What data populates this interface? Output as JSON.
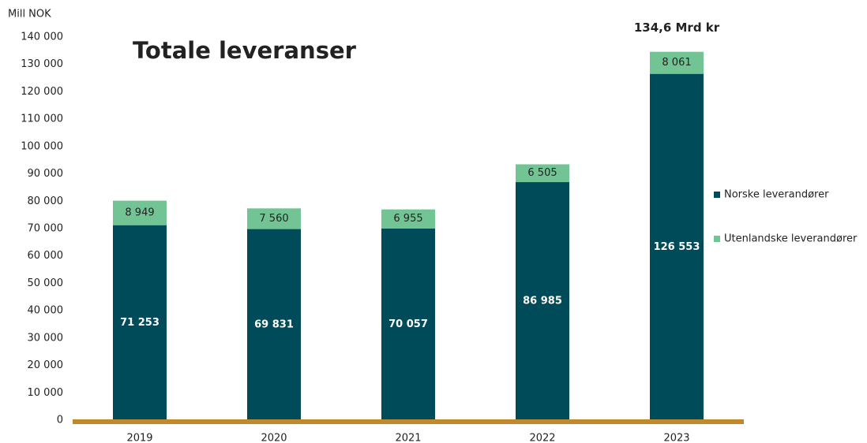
{
  "chart_data": {
    "type": "stacked_bar",
    "title": "Totale leveranser",
    "y_label": "Mill NOK",
    "annotation": "134,6 Mrd kr",
    "categories": [
      "2019",
      "2020",
      "2021",
      "2022",
      "2023"
    ],
    "series": [
      {
        "name": "Norske leverandører",
        "color": "#004b5a",
        "values": [
          71253,
          69831,
          70057,
          86985,
          126553
        ],
        "value_labels": [
          "71 253",
          "69 831",
          "70 057",
          "86 985",
          "126 553"
        ]
      },
      {
        "name": "Utenlandske leverandører",
        "color": "#72c495",
        "values": [
          8949,
          7560,
          6955,
          6505,
          8061
        ],
        "value_labels": [
          "8 949",
          "7 560",
          "6 955",
          "6 505",
          "8 061"
        ]
      }
    ],
    "ylim": [
      0,
      140000
    ],
    "yticks": [
      0,
      {
        "value": 10000,
        "label": "10 000"
      },
      {
        "value": 20000,
        "label": "20 000"
      },
      {
        "value": 30000,
        "label": "30 000"
      },
      {
        "value": 40000,
        "label": "40 000"
      },
      {
        "value": 50000,
        "label": "50 000"
      },
      {
        "value": 60000,
        "label": "60 000"
      },
      {
        "value": 70000,
        "label": "70 000"
      },
      {
        "value": 80000,
        "label": "80 000"
      },
      {
        "value": 90000,
        "label": "90 000"
      },
      {
        "value": 100000,
        "label": "100 000"
      },
      {
        "value": 110000,
        "label": "110 000"
      },
      {
        "value": 120000,
        "label": "120 000"
      },
      {
        "value": 130000,
        "label": "130 000"
      },
      {
        "value": 140000,
        "label": "140 000"
      }
    ],
    "grid": false,
    "legend": "right",
    "baseline_color": "#c08a2c"
  }
}
